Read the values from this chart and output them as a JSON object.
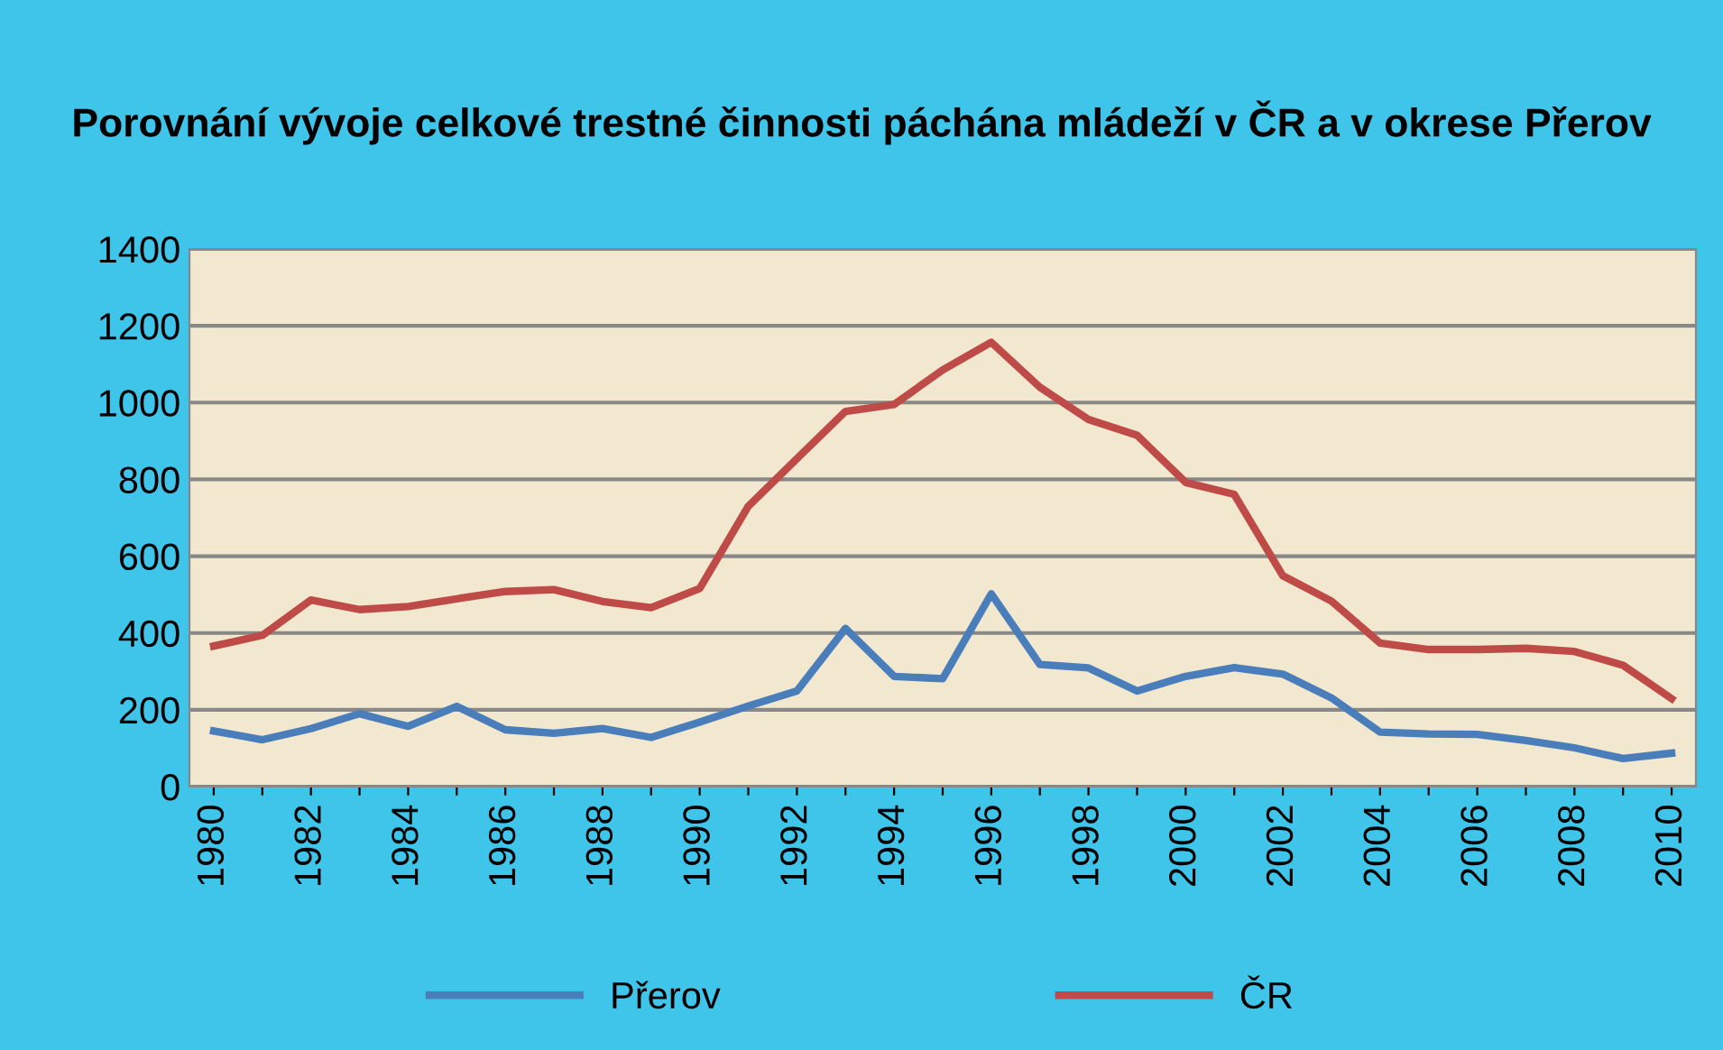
{
  "chart_data": {
    "type": "line",
    "title": "Porovnání vývoje celkové trestné činnosti páchána mládeží v ČR a v okrese Přerov",
    "categories": [
      "1980",
      null,
      "1982",
      null,
      "1984",
      null,
      "1986",
      null,
      "1988",
      null,
      "1990",
      null,
      "1992",
      null,
      "1994",
      null,
      "1996",
      null,
      "1998",
      null,
      "2000",
      null,
      "2002",
      null,
      "2004",
      null,
      "2006",
      null,
      "2008",
      null,
      "2010"
    ],
    "series": [
      {
        "name": "Přerov",
        "color": "#4a7ebb",
        "values": [
          145,
          122,
          151,
          190,
          157,
          209,
          148,
          139,
          151,
          128,
          168,
          210,
          249,
          412,
          287,
          281,
          502,
          318,
          309,
          249,
          287,
          310,
          293,
          231,
          142,
          137,
          136,
          120,
          101,
          73,
          87
        ]
      },
      {
        "name": "ČR",
        "color": "#be4b48",
        "values": [
          366,
          394,
          486,
          461,
          469,
          489,
          508,
          513,
          482,
          466,
          516,
          730,
          854,
          977,
          995,
          1085,
          1157,
          1040,
          956,
          915,
          792,
          761,
          549,
          483,
          374,
          357,
          357,
          360,
          352,
          316,
          229
        ]
      }
    ],
    "ylim": [
      0,
      1400
    ],
    "yticks": [
      0,
      200,
      400,
      600,
      800,
      1000,
      1200,
      1400
    ],
    "grid": "y",
    "legend": "bottom",
    "marker": "none",
    "line_style": "solid"
  }
}
